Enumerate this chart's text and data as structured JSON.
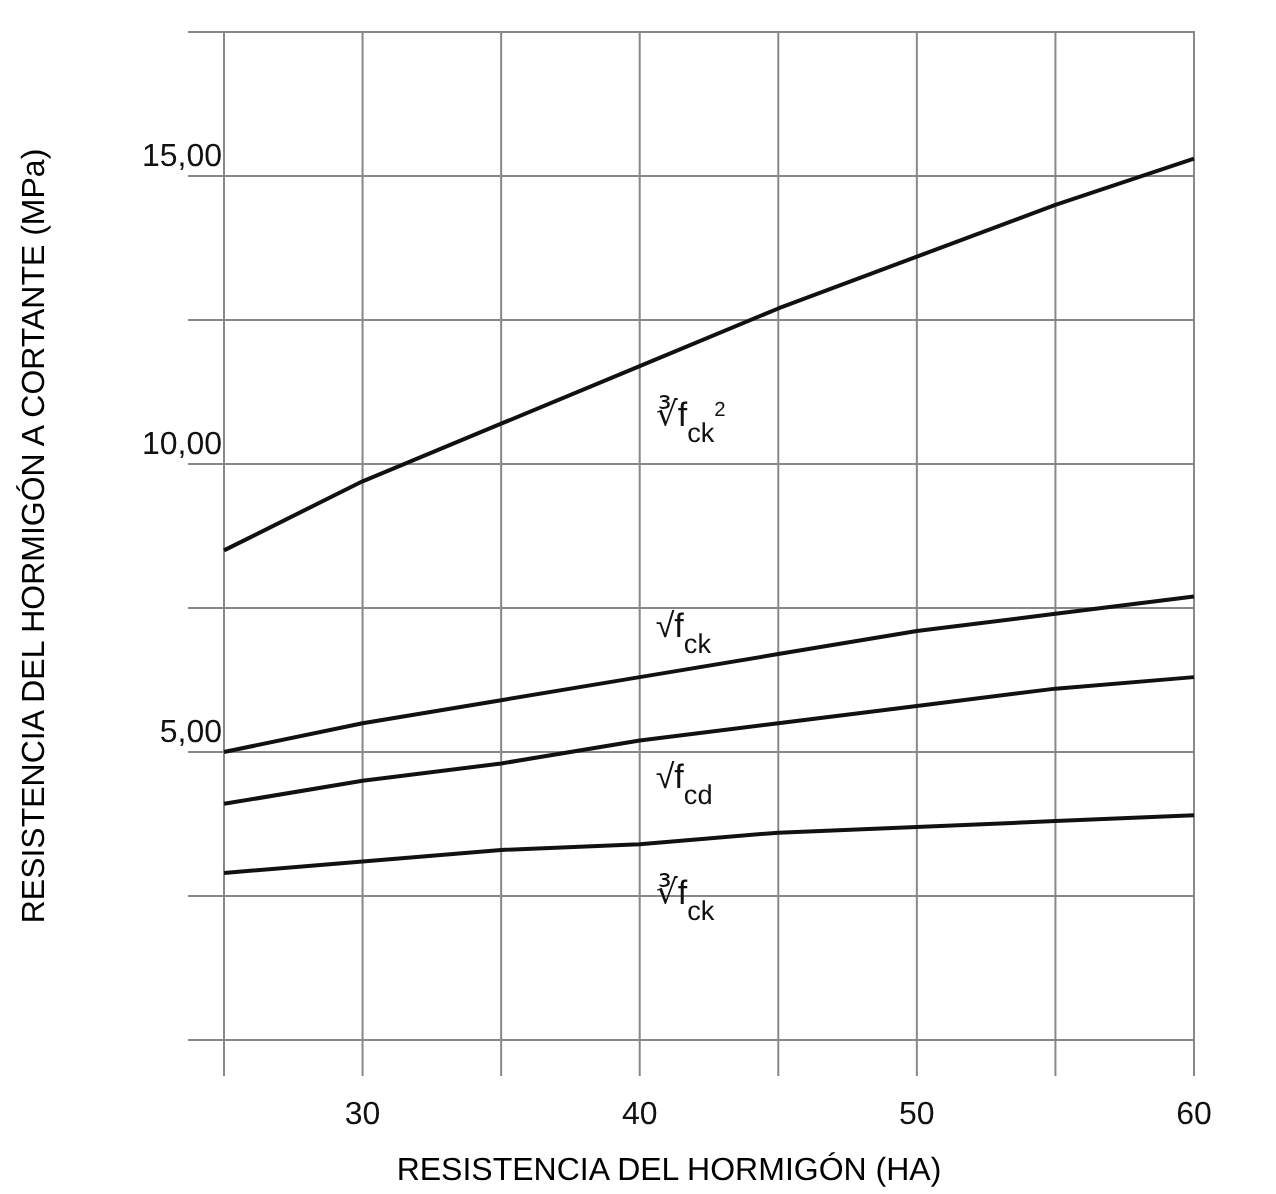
{
  "chart_data": {
    "type": "line",
    "xlabel": "RESISTENCIA DEL HORMIGÓN (HA)",
    "ylabel": "RESISTENCIA DEL HORMIGÓN A CORTANTE (MPa)",
    "x": [
      25,
      30,
      35,
      40,
      45,
      50,
      55,
      60
    ],
    "series": [
      {
        "name": "∛f$_{ck}$$^{2}$",
        "color": "#111111",
        "values": [
          8.5,
          9.7,
          10.7,
          11.7,
          12.7,
          13.6,
          14.5,
          15.3
        ]
      },
      {
        "name": "√f$_{ck}$",
        "color": "#111111",
        "values": [
          5.0,
          5.5,
          5.9,
          6.3,
          6.7,
          7.1,
          7.4,
          7.7
        ]
      },
      {
        "name": "√f$_{cd}$",
        "color": "#111111",
        "values": [
          4.1,
          4.5,
          4.8,
          5.2,
          5.5,
          5.8,
          6.1,
          6.3
        ]
      },
      {
        "name": "∛f$_{ck}$",
        "color": "#111111",
        "values": [
          2.9,
          3.1,
          3.3,
          3.4,
          3.6,
          3.7,
          3.8,
          3.9
        ]
      }
    ],
    "xlim": [
      25,
      60
    ],
    "xticks": [
      {
        "value": 25,
        "label": null
      },
      30,
      {
        "value": 35,
        "label": null
      },
      40,
      {
        "value": 45,
        "label": null
      },
      50,
      {
        "value": 55,
        "label": null
      },
      60
    ],
    "ylim": [
      0,
      17.5
    ],
    "yticks": [
      {
        "value": 0,
        "label": null
      },
      {
        "value": 2.5,
        "label": null
      },
      {
        "value": 5,
        "label": "5,00"
      },
      {
        "value": 7.5,
        "label": null
      },
      {
        "value": 10,
        "label": "10,00"
      },
      {
        "value": 12.5,
        "label": null
      },
      {
        "value": 15,
        "label": "15,00"
      },
      {
        "value": 17.5,
        "label": null
      }
    ],
    "grid": true,
    "legend": false,
    "marker": "none",
    "line_style": "solid"
  }
}
